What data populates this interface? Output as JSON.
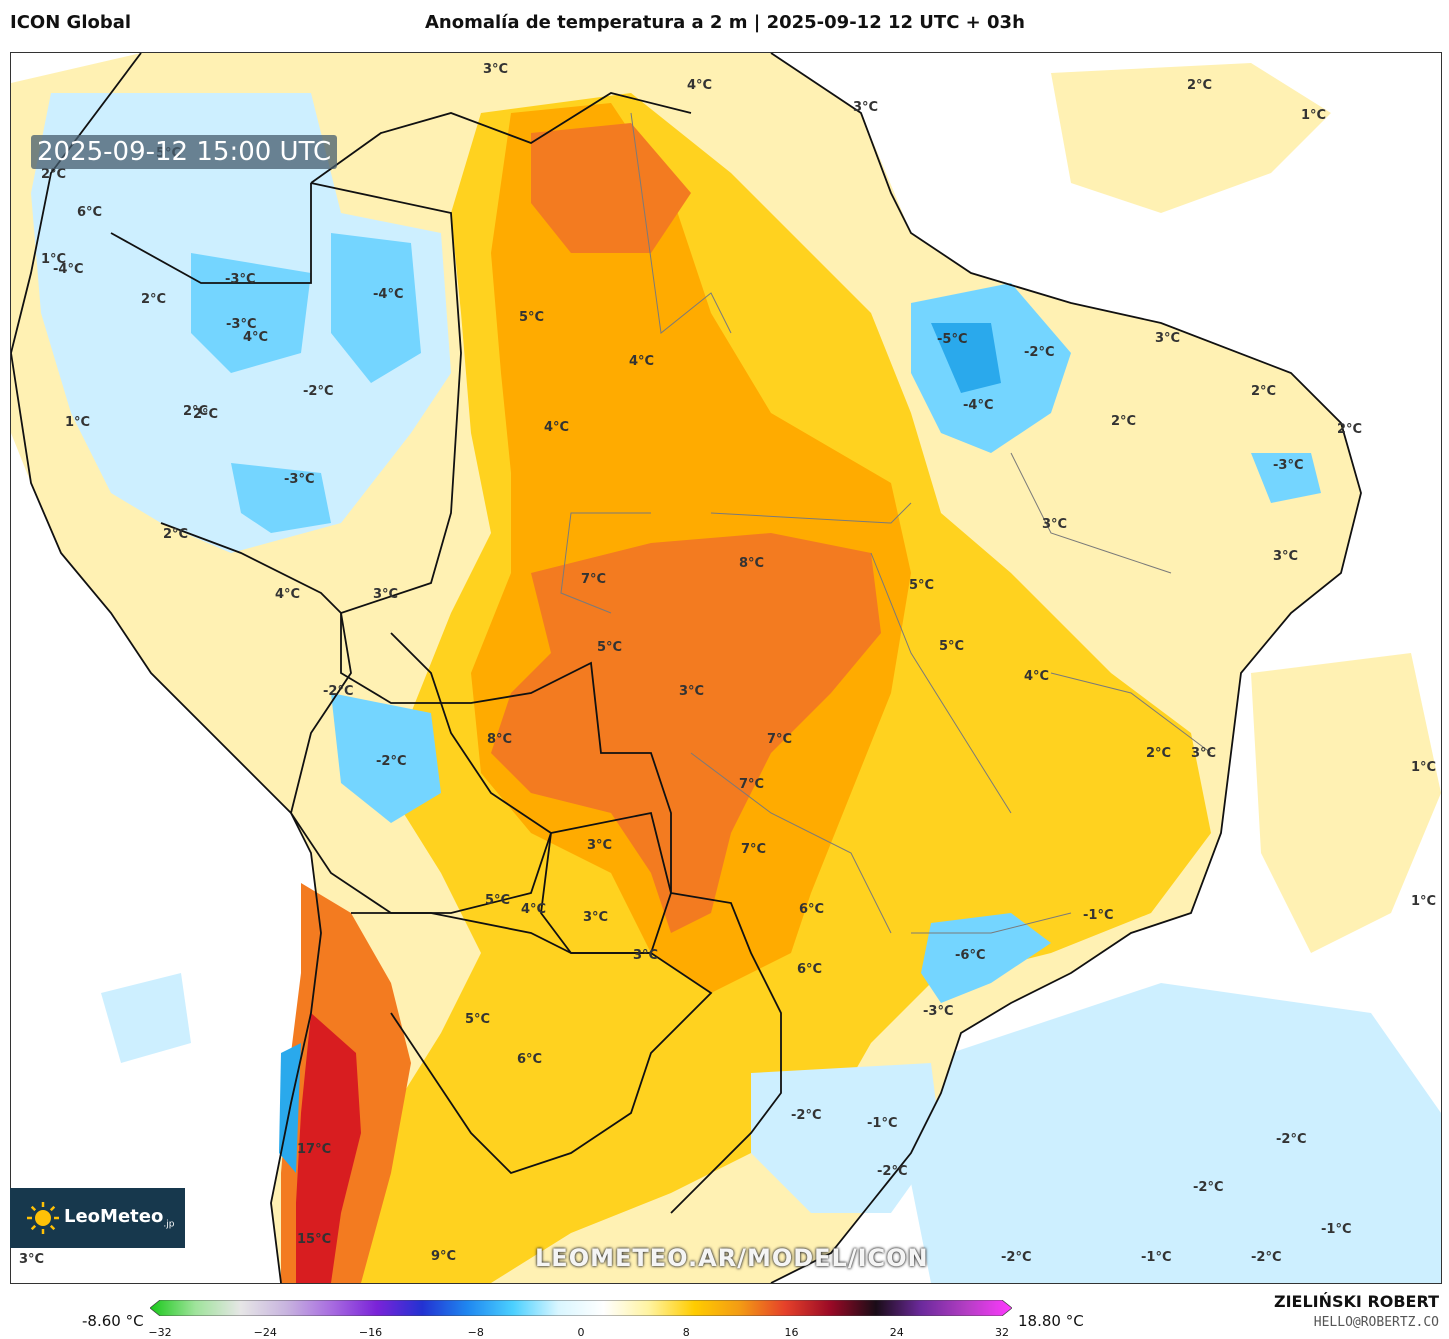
{
  "header": {
    "model_name": "ICON Global",
    "title": "Anomalía de temperatura a 2 m | 2025-09-12 12 UTC + 03h"
  },
  "map": {
    "valid_time": "2025-09-12 15:00 UTC",
    "watermark": "LEOMETEO.AR/MODEL/ICON",
    "logo": {
      "name": "LeoMeteo",
      "suffix": ".jp",
      "icon": "sun-icon"
    },
    "labels": [
      "3°C",
      "4°C",
      "3°C",
      "2°C",
      "1°C",
      "5°C",
      "2°C",
      "6°C",
      "1°C",
      "4°C",
      "-4°C",
      "-3°C",
      "2°C",
      "-3°C",
      "-4°C",
      "5°C",
      "4°C",
      "2°C",
      "-2°C",
      "1°C",
      "2°C",
      "4°C",
      "-3°C",
      "2°C",
      "7°C",
      "8°C",
      "4°C",
      "3°C",
      "5°C",
      "3°C",
      "7°C",
      "-2°C",
      "8°C",
      "-2°C",
      "7°C",
      "7°C",
      "6°C",
      "3°C",
      "5°C",
      "3°C",
      "3°C",
      "6°C",
      "6°C",
      "5°C",
      "4°C",
      "4°C",
      "5°C",
      "5°C",
      "-5°C",
      "-2°C",
      "-4°C",
      "3°C",
      "2°C",
      "2°C",
      "2°C",
      "-3°C",
      "3°C",
      "3°C",
      "2°C",
      "3°C",
      "1°C",
      "1°C",
      "-1°C",
      "-6°C",
      "-3°C",
      "-2°C",
      "-1°C",
      "-2°C",
      "-2°C",
      "-2°C",
      "-1°C",
      "-2°C",
      "-1°C",
      "-2°C",
      "17°C",
      "15°C",
      "9°C",
      "3°C"
    ],
    "colors": {
      "ocean": "#ffffff",
      "weak_positive": "#fff1b3",
      "moderate_positive": "#ffd21f",
      "strong_positive": "#ffab00",
      "very_strong_positive": "#f37b20",
      "extreme_positive": "#d81d20",
      "weak_negative": "#cdefff",
      "moderate_negative": "#74d5ff",
      "strong_negative": "#2aa9ec",
      "borders": "#111111"
    }
  },
  "colorbar": {
    "min_label": "-8.60 °C",
    "max_label": "18.80 °C",
    "ticks": [
      "−32",
      "−24",
      "−16",
      "−8",
      "0",
      "8",
      "16",
      "24",
      "32"
    ],
    "colors": [
      "#19c81a",
      "#9fe39b",
      "#e6e6e6",
      "#c8b4df",
      "#a86ce0",
      "#7a23d8",
      "#2332d2",
      "#1f87f0",
      "#4bd0ff",
      "#d9f6ff",
      "#ffffff",
      "#fff3a0",
      "#ffcc00",
      "#f39b14",
      "#e5412a",
      "#9a0a26",
      "#1a0c17",
      "#6c2a9c",
      "#b43ec4",
      "#ff39ff"
    ]
  },
  "footer": {
    "author": "ZIELIŃSKI ROBERT",
    "contact": "HELLO@ROBERTZ.CO"
  }
}
